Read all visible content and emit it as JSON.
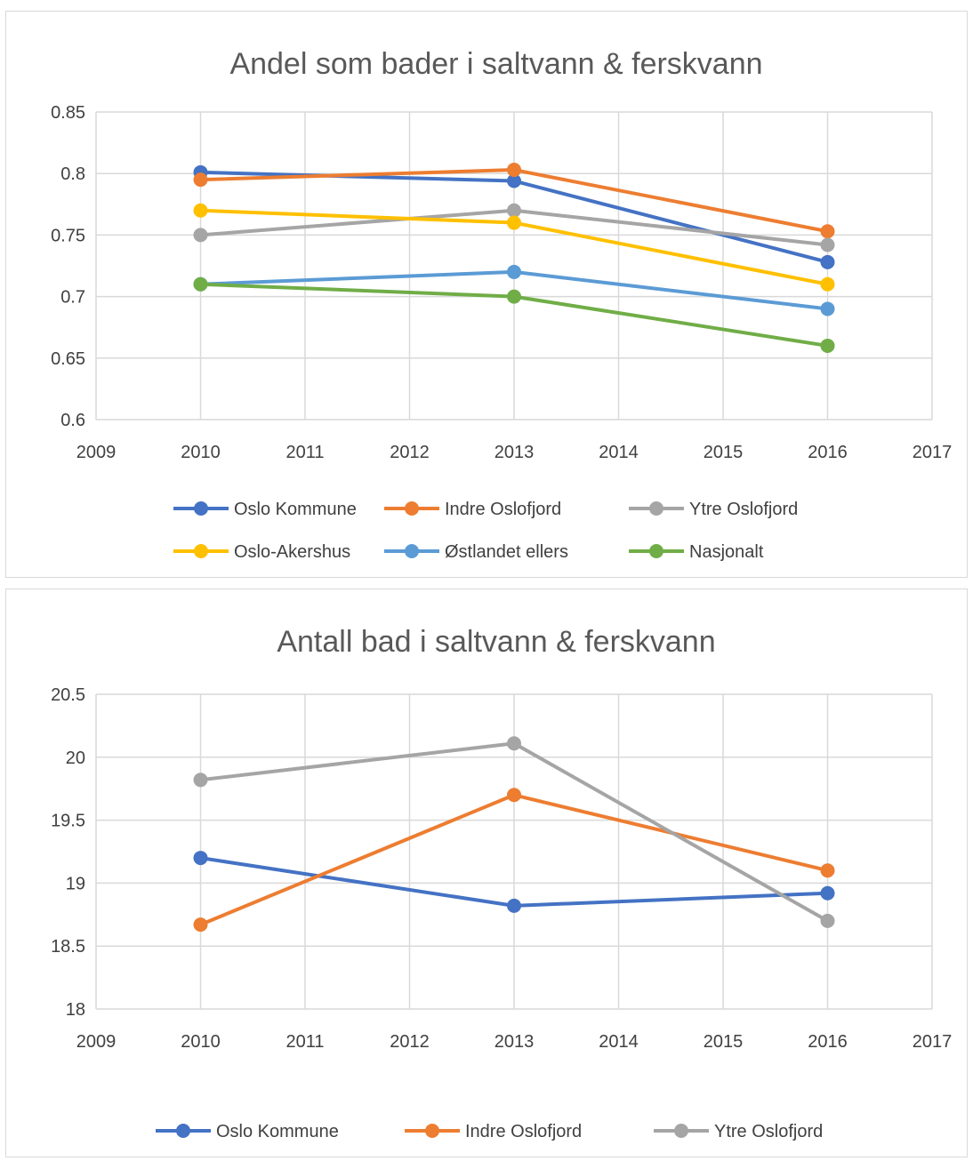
{
  "chart_data": [
    {
      "type": "line",
      "title": "Andel som bader i saltvann & ferskvann",
      "xlabel": "",
      "ylabel": "",
      "xlim": [
        2009,
        2017
      ],
      "ylim": [
        0.6,
        0.85
      ],
      "x_ticks": [
        "2009",
        "2010",
        "2011",
        "2012",
        "2013",
        "2014",
        "2015",
        "2016",
        "2017"
      ],
      "y_ticks": [
        "0.6",
        "0.65",
        "0.7",
        "0.75",
        "0.8",
        "0.85"
      ],
      "grid": true,
      "legend_position": "bottom",
      "x": [
        2010,
        2013,
        2016
      ],
      "series": [
        {
          "name": "Oslo Kommune",
          "color": "#4472c4",
          "values": [
            0.801,
            0.794,
            0.728
          ]
        },
        {
          "name": "Indre Oslofjord",
          "color": "#ed7d31",
          "values": [
            0.795,
            0.803,
            0.753
          ]
        },
        {
          "name": "Ytre Oslofjord",
          "color": "#a5a5a5",
          "values": [
            0.75,
            0.77,
            0.742
          ]
        },
        {
          "name": "Oslo-Akershus",
          "color": "#ffc000",
          "values": [
            0.77,
            0.76,
            0.71
          ]
        },
        {
          "name": "Østlandet ellers",
          "color": "#5b9bd5",
          "values": [
            0.71,
            0.72,
            0.69
          ]
        },
        {
          "name": "Nasjonalt",
          "color": "#70ad47",
          "values": [
            0.71,
            0.7,
            0.66
          ]
        }
      ]
    },
    {
      "type": "line",
      "title": "Antall bad i saltvann & ferskvann",
      "xlabel": "",
      "ylabel": "",
      "xlim": [
        2009,
        2017
      ],
      "ylim": [
        18,
        20.5
      ],
      "x_ticks": [
        "2009",
        "2010",
        "2011",
        "2012",
        "2013",
        "2014",
        "2015",
        "2016",
        "2017"
      ],
      "y_ticks": [
        "18",
        "18.5",
        "19",
        "19.5",
        "20",
        "20.5"
      ],
      "grid": true,
      "legend_position": "bottom",
      "x": [
        2010,
        2013,
        2016
      ],
      "series": [
        {
          "name": "Oslo Kommune",
          "color": "#4472c4",
          "values": [
            19.2,
            18.82,
            18.92
          ]
        },
        {
          "name": "Indre Oslofjord",
          "color": "#ed7d31",
          "values": [
            18.67,
            19.7,
            19.1
          ]
        },
        {
          "name": "Ytre Oslofjord",
          "color": "#a5a5a5",
          "values": [
            19.82,
            20.11,
            18.7
          ]
        }
      ]
    }
  ]
}
